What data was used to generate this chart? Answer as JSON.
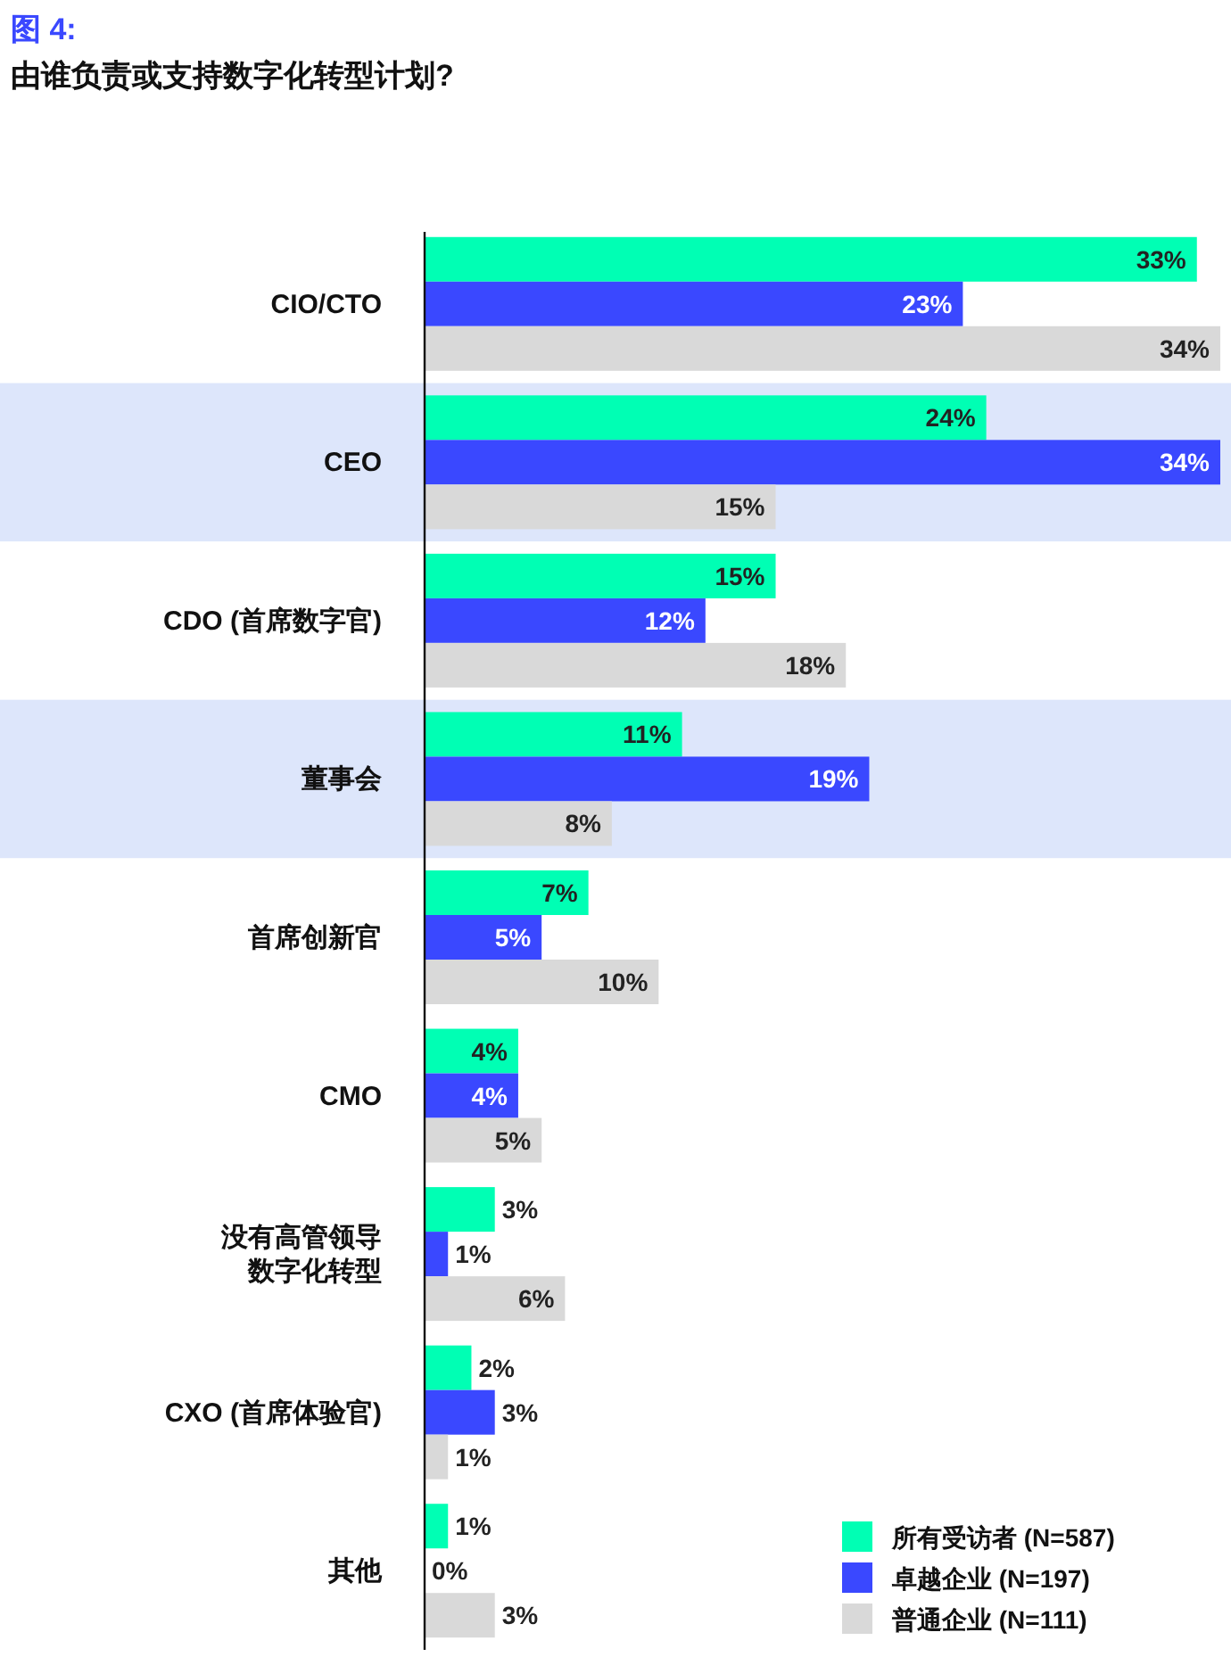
{
  "chart_data": {
    "type": "bar",
    "orientation": "horizontal",
    "title": "图 4:",
    "subtitle": "由谁负责或支持数字化转型计划?",
    "categories": [
      "CIO/CTO",
      "CEO",
      "CDO (首席数字官)",
      "董事会",
      "首席创新官",
      "CMO",
      "没有高管领导数字化转型",
      "CXO (首席体验官)",
      "其他"
    ],
    "series": [
      {
        "name": "所有受访者 (N=587)",
        "color": "#00ffb4",
        "values": [
          33,
          24,
          15,
          11,
          7,
          4,
          3,
          2,
          1
        ],
        "value_labels": [
          "33%",
          "24%",
          "15%",
          "11%",
          "7%",
          "4%",
          "3%",
          "2%",
          "1%"
        ]
      },
      {
        "name": "卓越企业 (N=197)",
        "color": "#3a48ff",
        "values": [
          23,
          34,
          12,
          19,
          5,
          4,
          1,
          3,
          0
        ],
        "value_labels": [
          "23%",
          "34%",
          "12%",
          "19%",
          "5%",
          "4%",
          "1%",
          "3%",
          "0%"
        ]
      },
      {
        "name": "普通企业 (N=111)",
        "color": "#d9d9d9",
        "values": [
          34,
          15,
          18,
          8,
          10,
          5,
          6,
          1,
          3
        ],
        "value_labels": [
          "34%",
          "15%",
          "18%",
          "8%",
          "10%",
          "5%",
          "6%",
          "1%",
          "3%"
        ]
      }
    ],
    "bands": [
      {
        "axis": "y",
        "from": "CEO",
        "to": "CEO",
        "color": "#dde6fb"
      },
      {
        "axis": "y",
        "from": "董事会",
        "to": "董事会",
        "color": "#dde6fb"
      }
    ],
    "legend": "bottom right"
  }
}
